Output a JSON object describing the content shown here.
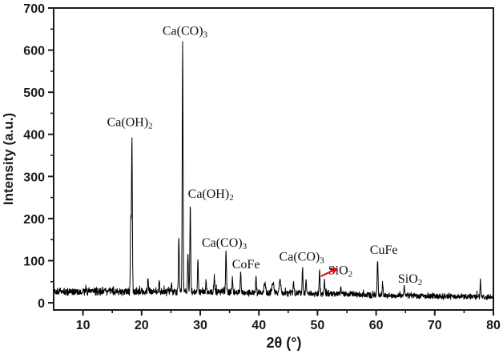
{
  "figure": {
    "description": "XRD pattern plot",
    "background": "#ffffff"
  },
  "chart_data": {
    "type": "line",
    "title": "",
    "xlabel": "2θ (°)",
    "ylabel": "Intensity (a.u.)",
    "xlim": [
      5,
      80
    ],
    "ylim": [
      -17,
      700
    ],
    "x_ticks": [
      10,
      20,
      30,
      40,
      50,
      60,
      70,
      80
    ],
    "x_minor_ticks": [
      15,
      25,
      35,
      45,
      55,
      65,
      75
    ],
    "y_ticks": [
      0,
      100,
      200,
      300,
      400,
      500,
      600,
      700
    ],
    "y_minor_ticks": [
      50,
      150,
      250,
      350,
      450,
      550,
      650
    ],
    "grid": false,
    "legend": null,
    "line_color": "#000000",
    "frame_color": "#1a1a1a",
    "baseline_profile": [
      [
        5,
        27
      ],
      [
        30,
        26
      ],
      [
        42,
        24
      ],
      [
        55,
        21
      ],
      [
        62,
        17
      ],
      [
        80,
        14
      ]
    ],
    "noise_amplitude": 11,
    "peaks": [
      {
        "x": 18.15,
        "top": 200
      },
      {
        "x": 18.35,
        "top": 395
      },
      {
        "x": 21.1,
        "top": 58
      },
      {
        "x": 23.0,
        "top": 52
      },
      {
        "x": 25.1,
        "top": 45
      },
      {
        "x": 26.35,
        "top": 155
      },
      {
        "x": 27.0,
        "top": 620
      },
      {
        "x": 27.9,
        "top": 120
      },
      {
        "x": 28.3,
        "top": 235
      },
      {
        "x": 29.6,
        "top": 100
      },
      {
        "x": 31.0,
        "top": 50
      },
      {
        "x": 32.4,
        "top": 64
      },
      {
        "x": 34.4,
        "top": 126
      },
      {
        "x": 35.5,
        "top": 60
      },
      {
        "x": 36.9,
        "top": 78
      },
      {
        "x": 39.5,
        "top": 56
      },
      {
        "x": 41.0,
        "top": 45,
        "w": 0.2
      },
      {
        "x": 42.4,
        "top": 50,
        "w": 0.2
      },
      {
        "x": 43.6,
        "top": 52,
        "w": 0.2
      },
      {
        "x": 45.9,
        "top": 54
      },
      {
        "x": 47.45,
        "top": 88
      },
      {
        "x": 48.05,
        "top": 60
      },
      {
        "x": 50.35,
        "top": 80
      },
      {
        "x": 51.2,
        "top": 52
      },
      {
        "x": 54.0,
        "top": 38
      },
      {
        "x": 60.25,
        "top": 106
      },
      {
        "x": 61.1,
        "top": 48
      },
      {
        "x": 64.8,
        "top": 42
      },
      {
        "x": 77.8,
        "top": 52
      }
    ],
    "annotations": [
      {
        "id": "ca-oh2-1",
        "text": "Ca(OH)",
        "sub": "2",
        "x": 18.0,
        "y": 431
      },
      {
        "id": "ca-co3-1",
        "text": "Ca(CO)",
        "sub": "3",
        "x": 27.4,
        "y": 648
      },
      {
        "id": "ca-oh2-2",
        "text": "Ca(OH)",
        "sub": "2",
        "x": 31.8,
        "y": 261
      },
      {
        "id": "ca-co3-2",
        "text": "Ca(CO)",
        "sub": "3",
        "x": 34.1,
        "y": 145
      },
      {
        "id": "cofe",
        "text": "CoFe",
        "sub": "",
        "x": 37.8,
        "y": 93
      },
      {
        "id": "ca-co3-3",
        "text": "Ca(CO)",
        "sub": "3",
        "x": 47.3,
        "y": 111
      },
      {
        "id": "sio2-1",
        "text": "SiO",
        "sub": "2",
        "x": 53.9,
        "y": 79
      },
      {
        "id": "cufe",
        "text": "CuFe",
        "sub": "",
        "x": 61.3,
        "y": 128
      },
      {
        "id": "sio2-2",
        "text": "SiO",
        "sub": "2",
        "x": 65.8,
        "y": 59
      }
    ],
    "arrow": {
      "color": "#e60505",
      "from_x": 50.6,
      "from_y": 63,
      "to_x": 52.5,
      "to_y": 76
    }
  }
}
